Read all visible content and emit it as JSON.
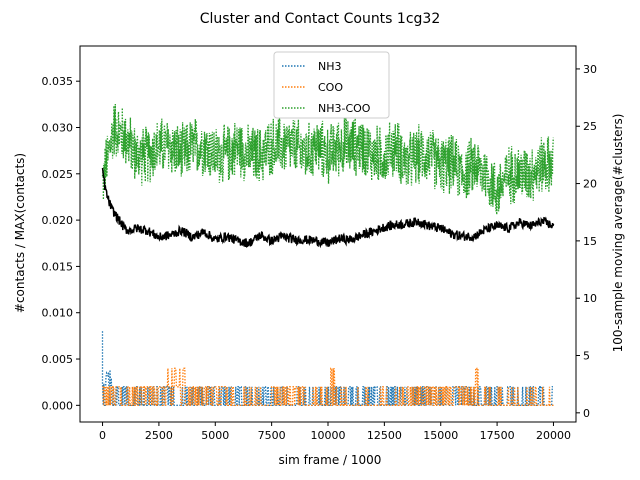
{
  "title": "Cluster and Contact Counts 1cg32",
  "chart_data": {
    "type": "line",
    "title": "Cluster and Contact Counts 1cg32",
    "xlabel": "sim frame / 1000",
    "ylabel": "#contacts / MAX(contacts)",
    "y2label": "100-sample moving average(#clusters)",
    "xlim": [
      -1000,
      21000
    ],
    "ylim": [
      -0.0018,
      0.0388
    ],
    "y2lim": [
      -0.8,
      32.0
    ],
    "xticks": [
      "0",
      "2500",
      "5000",
      "7500",
      "10000",
      "12500",
      "15000",
      "17500",
      "20000"
    ],
    "yticks": [
      "0.000",
      "0.005",
      "0.010",
      "0.015",
      "0.020",
      "0.025",
      "0.030",
      "0.035"
    ],
    "y2ticks": [
      "0",
      "5",
      "10",
      "15",
      "20",
      "25",
      "30"
    ],
    "grid": false,
    "legend_position": "top-center",
    "series": [
      {
        "name": "NH3",
        "axis": "left",
        "style": "dotted",
        "color": "#1f77b4",
        "description_points": [
          [
            0,
            0.008
          ],
          [
            500,
            0.002
          ],
          [
            1000,
            0.002
          ],
          [
            5000,
            0.002
          ],
          [
            10000,
            0.002
          ],
          [
            15000,
            0.002
          ],
          [
            20000,
            0.0
          ]
        ],
        "baseline": 0.0,
        "spike_levels": [
          0.002,
          0.003,
          0.008
        ]
      },
      {
        "name": "COO",
        "axis": "left",
        "style": "dotted",
        "color": "#ff7f0e",
        "baseline": 0.0,
        "spike_levels": [
          0.002,
          0.004
        ],
        "dense_regions": [
          [
            0,
            5500
          ],
          [
            7500,
            9000
          ],
          [
            13500,
            16500
          ]
        ]
      },
      {
        "name": "NH3-COO",
        "axis": "left",
        "style": "dotted",
        "color": "#2ca02c",
        "x": [
          0,
          500,
          1000,
          1500,
          2000,
          2500,
          3000,
          3500,
          4000,
          4500,
          5000,
          5500,
          6000,
          6500,
          7000,
          7500,
          8000,
          8500,
          9000,
          9500,
          10000,
          10500,
          11000,
          11500,
          12000,
          12500,
          13000,
          13500,
          14000,
          14500,
          15000,
          15500,
          16000,
          16500,
          17000,
          17500,
          18000,
          18500,
          19000,
          19500,
          20000
        ],
        "mean": [
          0.024,
          0.03,
          0.029,
          0.027,
          0.027,
          0.028,
          0.028,
          0.027,
          0.028,
          0.028,
          0.027,
          0.027,
          0.028,
          0.027,
          0.027,
          0.028,
          0.028,
          0.028,
          0.027,
          0.028,
          0.027,
          0.028,
          0.028,
          0.028,
          0.027,
          0.027,
          0.028,
          0.026,
          0.027,
          0.027,
          0.026,
          0.026,
          0.025,
          0.026,
          0.025,
          0.023,
          0.025,
          0.025,
          0.025,
          0.026,
          0.026
        ],
        "amplitude": 0.003
      },
      {
        "name": "",
        "axis": "right",
        "style": "solid",
        "color": "#000000",
        "x": [
          0,
          100,
          200,
          400,
          600,
          800,
          1000,
          1200,
          1500,
          2000,
          2500,
          3000,
          3500,
          4000,
          4500,
          5000,
          5500,
          6000,
          6500,
          7000,
          7500,
          8000,
          8500,
          9000,
          9500,
          10000,
          10500,
          11000,
          11500,
          12000,
          12500,
          13000,
          13500,
          14000,
          14500,
          15000,
          15500,
          16000,
          16500,
          17000,
          17500,
          18000,
          18500,
          19000,
          19500,
          20000
        ],
        "values": [
          21.3,
          19.8,
          18.9,
          17.8,
          17.2,
          16.6,
          16.0,
          15.9,
          16.1,
          15.9,
          15.3,
          15.5,
          15.9,
          15.3,
          15.8,
          15.1,
          15.4,
          15.0,
          14.8,
          15.5,
          15.0,
          15.4,
          15.1,
          15.1,
          15.0,
          14.8,
          15.2,
          15.1,
          15.5,
          15.8,
          16.2,
          16.4,
          16.5,
          16.7,
          16.3,
          16.1,
          15.6,
          15.4,
          15.4,
          16.0,
          16.3,
          16.1,
          16.6,
          16.3,
          16.7,
          16.3
        ]
      }
    ]
  }
}
